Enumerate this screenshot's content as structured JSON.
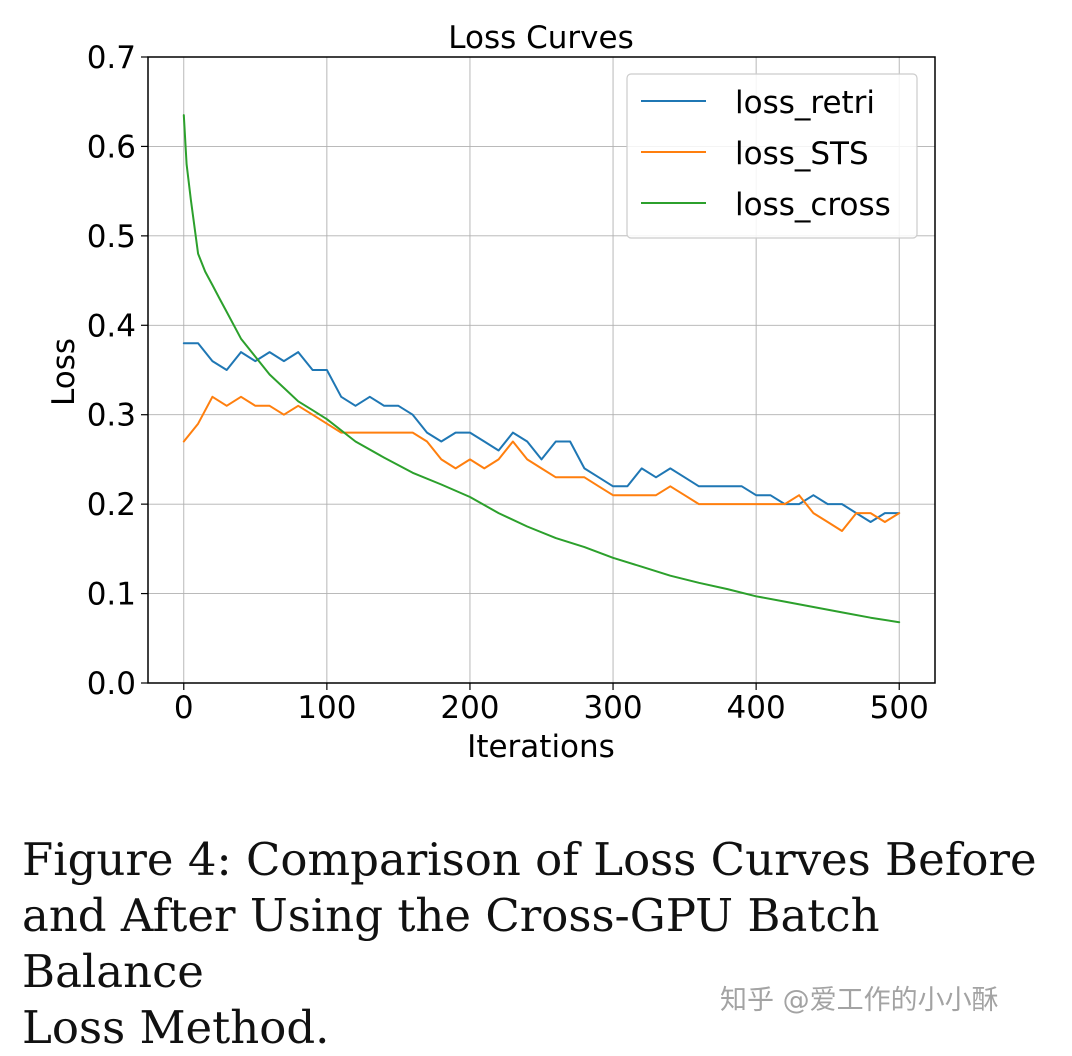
{
  "chart_data": {
    "type": "line",
    "title": "Loss Curves",
    "xlabel": "Iterations",
    "ylabel": "Loss",
    "xlim": [
      -25,
      525
    ],
    "ylim": [
      0.0,
      0.7
    ],
    "xticks": [
      0,
      100,
      200,
      300,
      400,
      500
    ],
    "xtick_labels": [
      "0",
      "100",
      "200",
      "300",
      "400",
      "500"
    ],
    "yticks": [
      0.0,
      0.1,
      0.2,
      0.3,
      0.4,
      0.5,
      0.6,
      0.7
    ],
    "ytick_labels": [
      "0.0",
      "0.1",
      "0.2",
      "0.3",
      "0.4",
      "0.5",
      "0.6",
      "0.7"
    ],
    "grid": true,
    "legend_position": "top-right",
    "series": [
      {
        "name": "loss_retri",
        "color": "#1f77b4",
        "x": [
          0,
          10,
          20,
          30,
          40,
          50,
          60,
          70,
          80,
          90,
          100,
          110,
          120,
          130,
          140,
          150,
          160,
          170,
          180,
          190,
          200,
          210,
          220,
          230,
          240,
          250,
          260,
          270,
          280,
          290,
          300,
          310,
          320,
          330,
          340,
          350,
          360,
          370,
          380,
          390,
          400,
          410,
          420,
          430,
          440,
          450,
          460,
          470,
          480,
          490,
          500
        ],
        "values": [
          0.38,
          0.38,
          0.36,
          0.35,
          0.37,
          0.36,
          0.37,
          0.36,
          0.37,
          0.35,
          0.35,
          0.32,
          0.31,
          0.32,
          0.31,
          0.31,
          0.3,
          0.28,
          0.27,
          0.28,
          0.28,
          0.27,
          0.26,
          0.28,
          0.27,
          0.25,
          0.27,
          0.27,
          0.24,
          0.23,
          0.22,
          0.22,
          0.24,
          0.23,
          0.24,
          0.23,
          0.22,
          0.22,
          0.22,
          0.22,
          0.21,
          0.21,
          0.2,
          0.2,
          0.21,
          0.2,
          0.2,
          0.19,
          0.18,
          0.19,
          0.19
        ]
      },
      {
        "name": "loss_STS",
        "color": "#ff7f0e",
        "x": [
          0,
          10,
          20,
          30,
          40,
          50,
          60,
          70,
          80,
          90,
          100,
          110,
          120,
          130,
          140,
          150,
          160,
          170,
          180,
          190,
          200,
          210,
          220,
          230,
          240,
          250,
          260,
          270,
          280,
          290,
          300,
          310,
          320,
          330,
          340,
          350,
          360,
          370,
          380,
          390,
          400,
          410,
          420,
          430,
          440,
          450,
          460,
          470,
          480,
          490,
          500
        ],
        "values": [
          0.27,
          0.29,
          0.32,
          0.31,
          0.32,
          0.31,
          0.31,
          0.3,
          0.31,
          0.3,
          0.29,
          0.28,
          0.28,
          0.28,
          0.28,
          0.28,
          0.28,
          0.27,
          0.25,
          0.24,
          0.25,
          0.24,
          0.25,
          0.27,
          0.25,
          0.24,
          0.23,
          0.23,
          0.23,
          0.22,
          0.21,
          0.21,
          0.21,
          0.21,
          0.22,
          0.21,
          0.2,
          0.2,
          0.2,
          0.2,
          0.2,
          0.2,
          0.2,
          0.21,
          0.19,
          0.18,
          0.17,
          0.19,
          0.19,
          0.18,
          0.19
        ]
      },
      {
        "name": "loss_cross",
        "color": "#2ca02c",
        "x": [
          0,
          2,
          5,
          10,
          15,
          20,
          25,
          30,
          40,
          50,
          60,
          70,
          80,
          90,
          100,
          120,
          140,
          160,
          180,
          200,
          220,
          240,
          260,
          280,
          300,
          320,
          340,
          360,
          380,
          400,
          420,
          440,
          460,
          480,
          500
        ],
        "values": [
          0.635,
          0.58,
          0.54,
          0.48,
          0.46,
          0.445,
          0.43,
          0.415,
          0.385,
          0.365,
          0.345,
          0.33,
          0.315,
          0.305,
          0.295,
          0.27,
          0.252,
          0.235,
          0.222,
          0.208,
          0.19,
          0.175,
          0.162,
          0.152,
          0.14,
          0.13,
          0.12,
          0.112,
          0.105,
          0.097,
          0.091,
          0.085,
          0.079,
          0.073,
          0.068
        ]
      }
    ]
  },
  "caption": {
    "line1": "Figure 4: Comparison of Loss Curves Before",
    "line2": "and After Using the Cross-GPU Batch Balance",
    "line3": "Loss Method."
  },
  "watermark": "知乎 @爱工作的小小酥"
}
